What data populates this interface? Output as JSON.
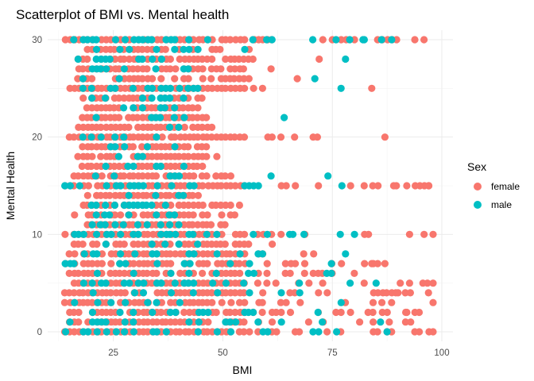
{
  "chart_data": {
    "type": "scatter",
    "title": "Scatterplot of BMI vs. Mental health",
    "xlabel": "BMI",
    "ylabel": "Mental Health",
    "xlim": [
      12,
      99
    ],
    "ylim": [
      0,
      30
    ],
    "xticks": [
      25,
      50,
      75,
      100
    ],
    "yticks": [
      0,
      10,
      20,
      30
    ],
    "grid": true,
    "legend": {
      "title": "Sex",
      "position": "right"
    },
    "colors": {
      "female": "#F8766D",
      "male": "#00BFC4"
    },
    "series": [
      {
        "name": "female",
        "y_levels": [
          30,
          29,
          28,
          27,
          26,
          25,
          24,
          23,
          22,
          21,
          20,
          19,
          18,
          17,
          16,
          15,
          14,
          13,
          12,
          11,
          10,
          9,
          8,
          7,
          6,
          5,
          4,
          3,
          2,
          1,
          0
        ],
        "x_ranges": [
          [
            14,
            99
          ],
          [
            18,
            50
          ],
          [
            16,
            57
          ],
          [
            17,
            55
          ],
          [
            17,
            56
          ],
          [
            15,
            61
          ],
          [
            18,
            46
          ],
          [
            19,
            45
          ],
          [
            18,
            47
          ],
          [
            17,
            48
          ],
          [
            15,
            72
          ],
          [
            18,
            47
          ],
          [
            17,
            49
          ],
          [
            18,
            46
          ],
          [
            16,
            52
          ],
          [
            14,
            99
          ],
          [
            18,
            45
          ],
          [
            17,
            54
          ],
          [
            16,
            53
          ],
          [
            18,
            51
          ],
          [
            14,
            99
          ],
          [
            16,
            66
          ],
          [
            15,
            71
          ],
          [
            14,
            89
          ],
          [
            15,
            83
          ],
          [
            16,
            97
          ],
          [
            14,
            98
          ],
          [
            14,
            90
          ],
          [
            15,
            96
          ],
          [
            14,
            93
          ],
          [
            14,
            99
          ]
        ],
        "extra_points": [
          [
            67,
            26
          ],
          [
            72,
            28
          ],
          [
            56,
            29
          ],
          [
            61,
            27
          ],
          [
            84,
            25
          ],
          [
            87,
            20
          ],
          [
            89,
            15
          ],
          [
            92,
            15
          ],
          [
            95,
            15
          ],
          [
            97,
            15
          ],
          [
            98,
            10
          ],
          [
            98,
            5
          ],
          [
            98,
            3
          ],
          [
            98,
            0
          ],
          [
            87,
            7
          ],
          [
            84,
            7
          ],
          [
            90,
            4
          ],
          [
            92,
            2
          ],
          [
            88,
            1
          ]
        ]
      },
      {
        "name": "male",
        "y_levels": [
          30,
          29,
          28,
          27,
          26,
          25,
          24,
          23,
          22,
          21,
          20,
          19,
          18,
          17,
          16,
          15,
          14,
          13,
          12,
          11,
          10,
          9,
          8,
          7,
          6,
          5,
          4,
          3,
          2,
          1,
          0
        ],
        "x_ranges": [
          [
            16,
            89
          ],
          [
            17,
            47
          ],
          [
            17,
            43
          ],
          [
            18,
            45
          ],
          [
            18,
            42
          ],
          [
            17,
            48
          ],
          [
            20,
            41
          ],
          [
            20,
            39
          ],
          [
            19,
            42
          ],
          [
            19,
            40
          ],
          [
            18,
            45
          ],
          [
            19,
            41
          ],
          [
            19,
            42
          ],
          [
            20,
            42
          ],
          [
            20,
            42
          ],
          [
            13,
            78
          ],
          [
            20,
            42
          ],
          [
            19,
            43
          ],
          [
            20,
            40
          ],
          [
            19,
            42
          ],
          [
            16,
            82
          ],
          [
            19,
            48
          ],
          [
            13,
            75
          ],
          [
            14,
            79
          ],
          [
            16,
            81
          ],
          [
            15,
            85
          ],
          [
            14,
            83
          ],
          [
            14,
            82
          ],
          [
            15,
            80
          ],
          [
            15,
            82
          ],
          [
            14,
            89
          ]
        ],
        "extra_points": [
          [
            71,
            26
          ],
          [
            77,
            25
          ],
          [
            64,
            22
          ],
          [
            61,
            16
          ],
          [
            74,
            16
          ],
          [
            66,
            10
          ],
          [
            78,
            8
          ],
          [
            85,
            5
          ],
          [
            86,
            1
          ],
          [
            55,
            29
          ],
          [
            60,
            30
          ],
          [
            78,
            28
          ],
          [
            82,
            30
          ]
        ]
      }
    ]
  }
}
